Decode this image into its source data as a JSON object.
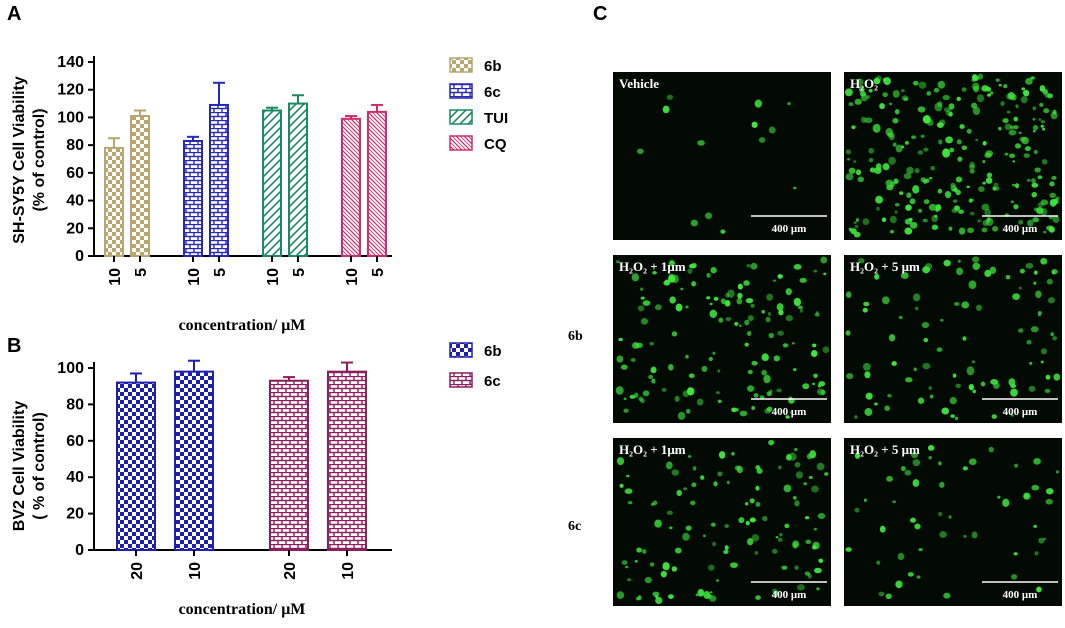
{
  "panels": {
    "a": "A",
    "b": "B",
    "c": "C"
  },
  "chart_data": [
    {
      "type": "bar",
      "title": "",
      "ylabel_line1": "SH-SY5Y Cell Viability",
      "ylabel_line2": "(% of control)",
      "xlabel": "concentration/ μM",
      "ylim": [
        0,
        140
      ],
      "yticks": [
        0,
        20,
        40,
        60,
        80,
        100,
        120,
        140
      ],
      "legend_position": "right",
      "series": [
        {
          "name": "6b",
          "color": "#b7a66d",
          "pattern": "checker",
          "categories": [
            "10",
            "5"
          ],
          "values": [
            78,
            101
          ],
          "errors": [
            7,
            4
          ]
        },
        {
          "name": "6c",
          "color": "#2727b8",
          "pattern": "brick",
          "categories": [
            "10",
            "5"
          ],
          "values": [
            83,
            109
          ],
          "errors": [
            3,
            16
          ]
        },
        {
          "name": "TUI",
          "color": "#1a8a62",
          "pattern": "diagonal",
          "categories": [
            "10",
            "5"
          ],
          "values": [
            105,
            110
          ],
          "errors": [
            2,
            6
          ]
        },
        {
          "name": "CQ",
          "color": "#cc2e6b",
          "pattern": "hatch",
          "categories": [
            "10",
            "5"
          ],
          "values": [
            99,
            104
          ],
          "errors": [
            2,
            5
          ]
        }
      ]
    },
    {
      "type": "bar",
      "title": "",
      "ylabel_line1": "BV2 Cell Viability",
      "ylabel_line2": "( % of control)",
      "xlabel": "concentration/ μM",
      "ylim": [
        0,
        100
      ],
      "yticks": [
        0,
        20,
        40,
        60,
        80,
        100
      ],
      "legend_position": "top-right",
      "series": [
        {
          "name": "6b",
          "color": "#1e1eb0",
          "pattern": "checker",
          "categories": [
            "20",
            "10"
          ],
          "values": [
            92,
            98
          ],
          "errors": [
            5,
            6
          ]
        },
        {
          "name": "6c",
          "color": "#8a1e5e",
          "pattern": "brick",
          "categories": [
            "20",
            "10"
          ],
          "values": [
            93,
            98
          ],
          "errors": [
            2,
            5
          ]
        }
      ]
    }
  ],
  "micrographs": {
    "row_labels": [
      "6b",
      "6c"
    ],
    "scale_bar": "400 μm",
    "images": [
      {
        "label": "Vehicle",
        "density": 0.05
      },
      {
        "label": "H₂O₂",
        "density": 1.0
      },
      {
        "label": "H₂O₂ + 1μm",
        "density": 0.55
      },
      {
        "label": "H₂O₂ + 5 μm",
        "density": 0.35
      },
      {
        "label": "H₂O₂ + 1μm",
        "density": 0.45
      },
      {
        "label": "H₂O₂ + 5 μm",
        "density": 0.2
      }
    ]
  },
  "colors": {
    "axis": "#000000",
    "image_bg": "#030a03",
    "cell": "#3ee83e"
  }
}
